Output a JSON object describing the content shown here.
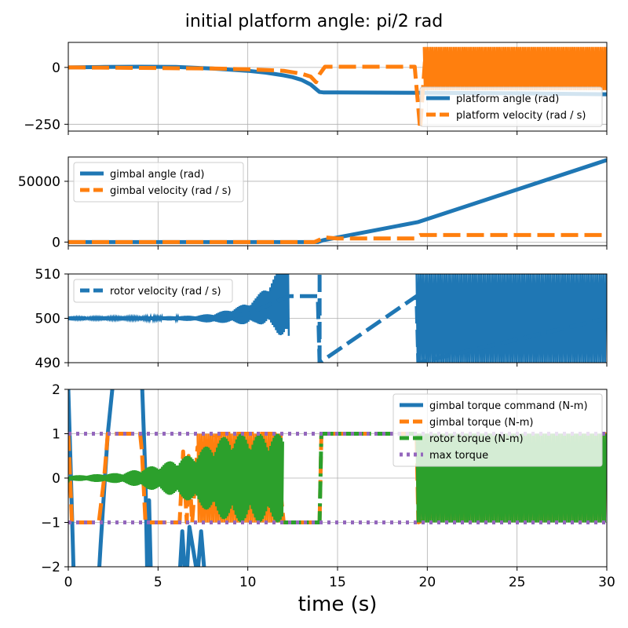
{
  "figure": {
    "title": "initial platform angle: pi/2 rad",
    "xlabel": "time (s)"
  },
  "colors": {
    "blue": "#1f77b4",
    "orange": "#ff7f0e",
    "green": "#2ca02c",
    "purple": "#9467bd",
    "grid": "#b0b0b0"
  },
  "chart_data": [
    {
      "type": "line",
      "xlim": [
        0,
        30
      ],
      "ylim": [
        -280,
        110
      ],
      "yticks": [
        {
          "v": 0,
          "label": "0"
        },
        {
          "v": -250,
          "label": "−250"
        }
      ],
      "xticks": [
        0,
        5,
        10,
        15,
        20,
        25,
        30
      ],
      "grid": true,
      "legend_position": "lower-right",
      "series": [
        {
          "name": "platform angle (rad)",
          "color": "blue",
          "style": "solid",
          "x": [
            0,
            2,
            4,
            6,
            8,
            10,
            11,
            12,
            12.5,
            13,
            13.5,
            13.8,
            14,
            14.2,
            15,
            20,
            25,
            30
          ],
          "y": [
            0,
            2,
            3,
            2,
            -5,
            -15,
            -23,
            -35,
            -43,
            -55,
            -75,
            -95,
            -108,
            -110,
            -110,
            -112,
            -114,
            -118
          ]
        },
        {
          "name": "platform velocity (rad / s)",
          "color": "orange",
          "style": "dashed",
          "x": [
            0,
            4,
            8,
            10,
            12,
            13,
            13.5,
            13.8,
            14,
            14.3,
            15,
            17,
            19.3,
            19.6,
            19.9
          ],
          "y": [
            0,
            -2,
            -5,
            -8,
            -15,
            -28,
            -40,
            -65,
            -30,
            3,
            3,
            3,
            3,
            -270,
            60
          ],
          "band": {
            "from": 19.8,
            "to": 30,
            "low": -100,
            "high": 90
          }
        }
      ]
    },
    {
      "type": "line",
      "xlim": [
        0,
        30
      ],
      "ylim": [
        -3000,
        70000
      ],
      "yticks": [
        {
          "v": 0,
          "label": "0"
        },
        {
          "v": 50000,
          "label": "50000"
        }
      ],
      "xticks": [
        0,
        5,
        10,
        15,
        20,
        25,
        30
      ],
      "grid": true,
      "legend_position": "upper-left",
      "series": [
        {
          "name": "gimbal angle (rad)",
          "color": "blue",
          "style": "solid",
          "x": [
            0,
            13.9,
            14.2,
            19.5,
            30
          ],
          "y": [
            0,
            0,
            1500,
            16500,
            67500
          ]
        },
        {
          "name": "gimbal velocity (rad / s)",
          "color": "orange",
          "style": "dashed",
          "x": [
            0,
            13.7,
            14.3,
            15,
            19.3,
            19.6,
            30
          ],
          "y": [
            0,
            0,
            3800,
            3000,
            3000,
            5800,
            5800
          ]
        }
      ]
    },
    {
      "type": "line",
      "xlim": [
        0,
        30
      ],
      "ylim": [
        490,
        510
      ],
      "yticks": [
        {
          "v": 490,
          "label": "490"
        },
        {
          "v": 500,
          "label": "500"
        },
        {
          "v": 510,
          "label": "510"
        }
      ],
      "xticks": [
        0,
        5,
        10,
        15,
        20,
        25,
        30
      ],
      "grid": true,
      "legend_position": "upper-left",
      "series": [
        {
          "name": "rotor velocity (rad / s)",
          "color": "blue",
          "style": "dashed",
          "x": [
            0,
            5,
            8,
            10,
            12.3,
            13.9,
            14,
            19.4,
            19.5,
            30
          ],
          "y": [
            500,
            500,
            500,
            501,
            505,
            505,
            490,
            505,
            490,
            500
          ],
          "envelope_half_width": {
            "x": [
              0,
              4,
              7,
              9,
              10.5,
              11.5,
              12.3
            ],
            "y": [
              0.2,
              0.3,
              0.6,
              1.5,
              3,
              6,
              12
            ]
          },
          "band": {
            "from": 19.4,
            "to": 30,
            "low": 490,
            "high": 510
          },
          "vertical_segment": {
            "x": 14,
            "low": 490,
            "high": 510
          }
        }
      ]
    },
    {
      "type": "line",
      "xlim": [
        0,
        30
      ],
      "ylim": [
        -2,
        2
      ],
      "yticks": [
        {
          "v": -2,
          "label": "−2"
        },
        {
          "v": -1,
          "label": "−1"
        },
        {
          "v": 0,
          "label": "0"
        },
        {
          "v": 1,
          "label": "1"
        },
        {
          "v": 2,
          "label": "2"
        }
      ],
      "xticks": [
        0,
        5,
        10,
        15,
        20,
        25,
        30
      ],
      "xticklabels": [
        "0",
        "5",
        "10",
        "15",
        "20",
        "25",
        "30"
      ],
      "grid": true,
      "legend_position": "upper-right",
      "series": [
        {
          "name": "gimbal torque command (N-m)",
          "color": "blue",
          "style": "solid",
          "x": [
            0,
            0.15,
            0.3,
            0.5,
            1.7,
            1.8,
            2.2,
            2.5,
            2.7,
            3.0,
            3.5,
            3.9,
            4.1,
            4.3,
            4.4,
            4.5,
            4.6,
            4.7,
            5.0,
            6.2,
            6.35,
            6.5,
            6.6,
            6.75,
            7.2,
            7.4,
            7.6,
            8,
            30
          ],
          "y": [
            2,
            0,
            -2.2,
            -2.2,
            -2.2,
            -1.5,
            1,
            2.2,
            2.2,
            2.2,
            2.2,
            2.2,
            2.2,
            0,
            -2.2,
            -0.5,
            -2.2,
            -2.2,
            -2.2,
            -2.2,
            -1.2,
            -2.2,
            -2.2,
            -1.1,
            -2.2,
            -1.2,
            -2.2,
            -2.2,
            -2.2
          ]
        },
        {
          "name": "gimbal torque (N-m)",
          "color": "orange",
          "style": "dashed",
          "x": [
            0,
            0.1,
            0.2,
            1.7,
            2.0,
            2.2,
            4.0,
            4.1,
            4.3,
            4.5,
            6.2,
            6.4,
            6.6,
            6.7,
            6.9,
            7.2,
            8.5,
            11.5,
            12,
            14,
            14.1,
            19.4,
            19.5,
            30
          ],
          "y": [
            1,
            0,
            -1,
            -1,
            0,
            1,
            1,
            0.6,
            -1,
            -1,
            -1,
            0.6,
            -1,
            0.5,
            -1,
            0.7,
            1,
            1,
            -1,
            -1,
            1,
            1,
            -1,
            1
          ],
          "band": {
            "from": 7.2,
            "to": 12,
            "low": -1,
            "high": 1
          },
          "band2": {
            "from": 19.4,
            "to": 30,
            "low": -1,
            "high": 1
          }
        },
        {
          "name": "rotor torque (N-m)",
          "color": "green",
          "style": "dash-dot",
          "x": [
            0,
            14,
            14.1,
            19.4
          ],
          "y": [
            0,
            -1,
            1,
            1
          ],
          "envelope_half_width": {
            "x": [
              0,
              3,
              5,
              7,
              8,
              9,
              10,
              12
            ],
            "y": [
              0.05,
              0.12,
              0.3,
              0.55,
              0.8,
              1,
              1,
              1
            ]
          },
          "band": {
            "from": 19.4,
            "to": 30,
            "low": -1,
            "high": 1
          }
        },
        {
          "name": "max torque",
          "color": "purple",
          "style": "dotted",
          "x": [
            0,
            30
          ],
          "y": [
            1,
            1
          ],
          "mirror_y": [
            -1,
            -1
          ]
        }
      ]
    }
  ]
}
